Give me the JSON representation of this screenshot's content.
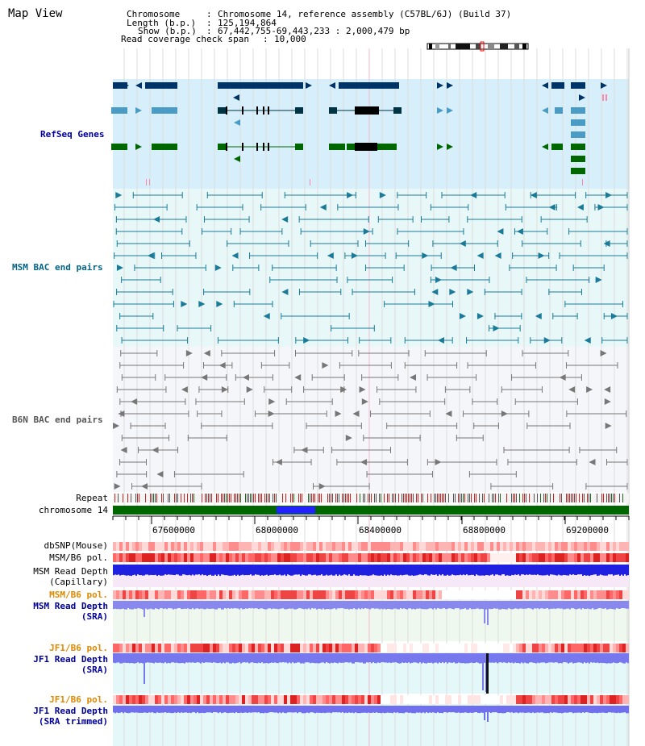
{
  "view_title": "Map View",
  "info": {
    "chromosome_key": "Chromosome",
    "chromosome_val": "Chromosome 14, reference assembly (C57BL/6J) (Build 37)",
    "length_key": "Length (b.p.)",
    "length_val": "125,194,864",
    "show_key": "Show (b.p.)",
    "show_val": "67,442,755-69,443,233 : 2,000,479 bp",
    "coverage_key": "Read coverage check span",
    "coverage_val": "10,000"
  },
  "tracks": {
    "refseq": "RefSeq Genes",
    "msm_bac": "MSM BAC end pairs",
    "b6n_bac": "B6N BAC end pairs",
    "repeat": "Repeat",
    "chromosome": "chromosome 14",
    "dbsnp": "dbSNP(Mouse)",
    "msm_b6_pol_1": "MSM/B6 pol.",
    "msm_depth_cap_1": "MSM Read Depth",
    "msm_depth_cap_2": "(Capillary)",
    "msm_b6_pol_2": "MSM/B6 pol.",
    "msm_depth_sra_1": "MSM Read Depth",
    "msm_depth_sra_2": "(SRA)",
    "jf1_b6_pol_1": "JF1/B6 pol.",
    "jf1_depth_sra_1": "JF1 Read Depth",
    "jf1_depth_sra_2": "(SRA)",
    "jf1_b6_pol_2": "JF1/B6 pol.",
    "jf1_depth_trim_1": "JF1 Read Depth",
    "jf1_depth_trim_2": "(SRA trimmed)"
  },
  "axis_ticks": [
    "67600000",
    "68000000",
    "68400000",
    "68800000",
    "69200000"
  ],
  "colors": {
    "refseq_bg": "#d6effa",
    "msm_bg": "#e8f8f8",
    "b6n_bg": "#f4f6fa",
    "gene_dark": "#003366",
    "gene_mid": "#4a9cc4",
    "gene_green": "#006600",
    "msm_line": "#1a7a99",
    "b6n_line": "#777777",
    "chrom_green": "#006600",
    "label_blue": "#000099",
    "label_teal": "#006688",
    "label_orange": "#e08800"
  }
}
